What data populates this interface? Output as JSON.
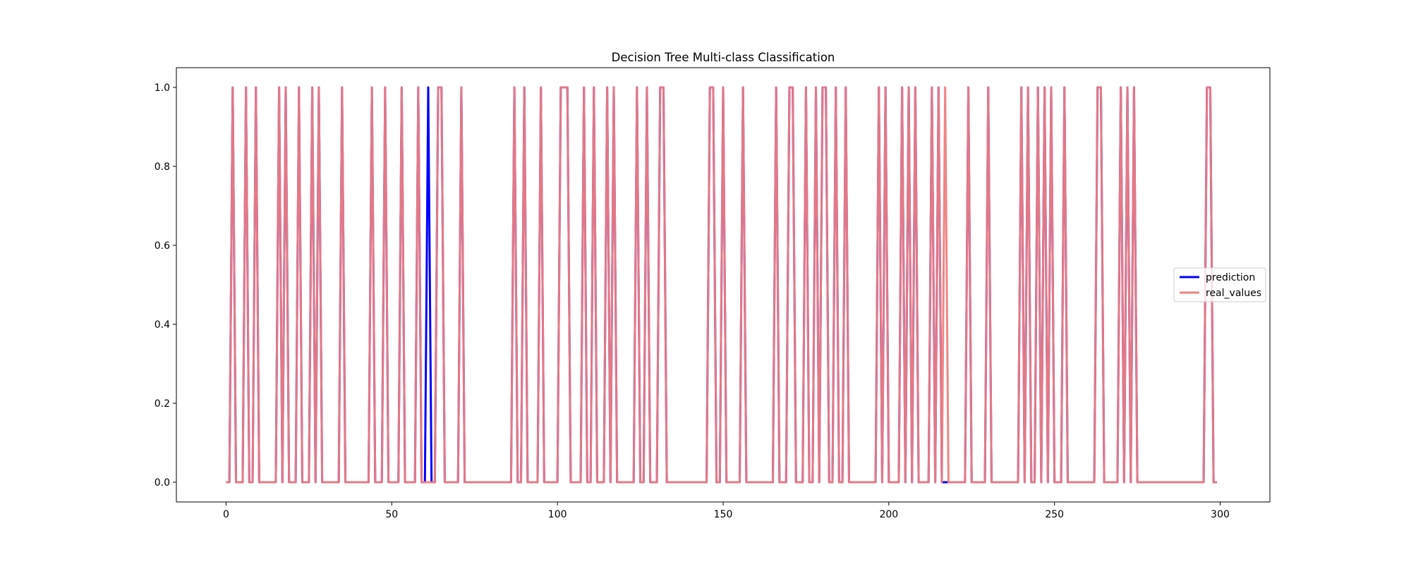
{
  "chart_data": {
    "type": "line",
    "title": "Decision Tree Multi-class Classification",
    "xlabel": "",
    "ylabel": "",
    "xlim": [
      -15,
      315
    ],
    "ylim": [
      -0.05,
      1.05
    ],
    "x_ticks": [
      0,
      50,
      100,
      150,
      200,
      250,
      300
    ],
    "x_tick_labels": [
      "0",
      "50",
      "100",
      "150",
      "200",
      "250",
      "300"
    ],
    "y_ticks": [
      0.0,
      0.2,
      0.4,
      0.6,
      0.8,
      1.0
    ],
    "y_tick_labels": [
      "0.0",
      "0.2",
      "0.4",
      "0.6",
      "0.8",
      "1.0"
    ],
    "grid": false,
    "legend_position": "center-right",
    "n_points": 300,
    "series": [
      {
        "name": "prediction",
        "color": "#0000ff",
        "ones": [
          2,
          6,
          9,
          16,
          18,
          22,
          26,
          28,
          35,
          44,
          48,
          53,
          58,
          61,
          64,
          65,
          71,
          87,
          90,
          95,
          101,
          102,
          103,
          108,
          111,
          115,
          117,
          124,
          127,
          131,
          132,
          146,
          147,
          150,
          156,
          166,
          170,
          171,
          175,
          178,
          180,
          181,
          184,
          187,
          197,
          199,
          204,
          206,
          208,
          213,
          215,
          224,
          230,
          240,
          242,
          245,
          247,
          249,
          253,
          263,
          264,
          270,
          272,
          274,
          296,
          297
        ]
      },
      {
        "name": "real_values",
        "color": "#f08080",
        "ones": [
          2,
          6,
          9,
          16,
          18,
          22,
          26,
          28,
          35,
          44,
          48,
          53,
          58,
          64,
          65,
          71,
          87,
          90,
          95,
          101,
          102,
          103,
          108,
          111,
          115,
          117,
          124,
          127,
          131,
          132,
          146,
          147,
          150,
          156,
          166,
          170,
          171,
          175,
          178,
          180,
          181,
          184,
          187,
          197,
          199,
          204,
          206,
          208,
          213,
          215,
          217,
          224,
          230,
          240,
          242,
          245,
          247,
          249,
          253,
          263,
          264,
          270,
          272,
          274,
          296,
          297
        ]
      }
    ]
  }
}
